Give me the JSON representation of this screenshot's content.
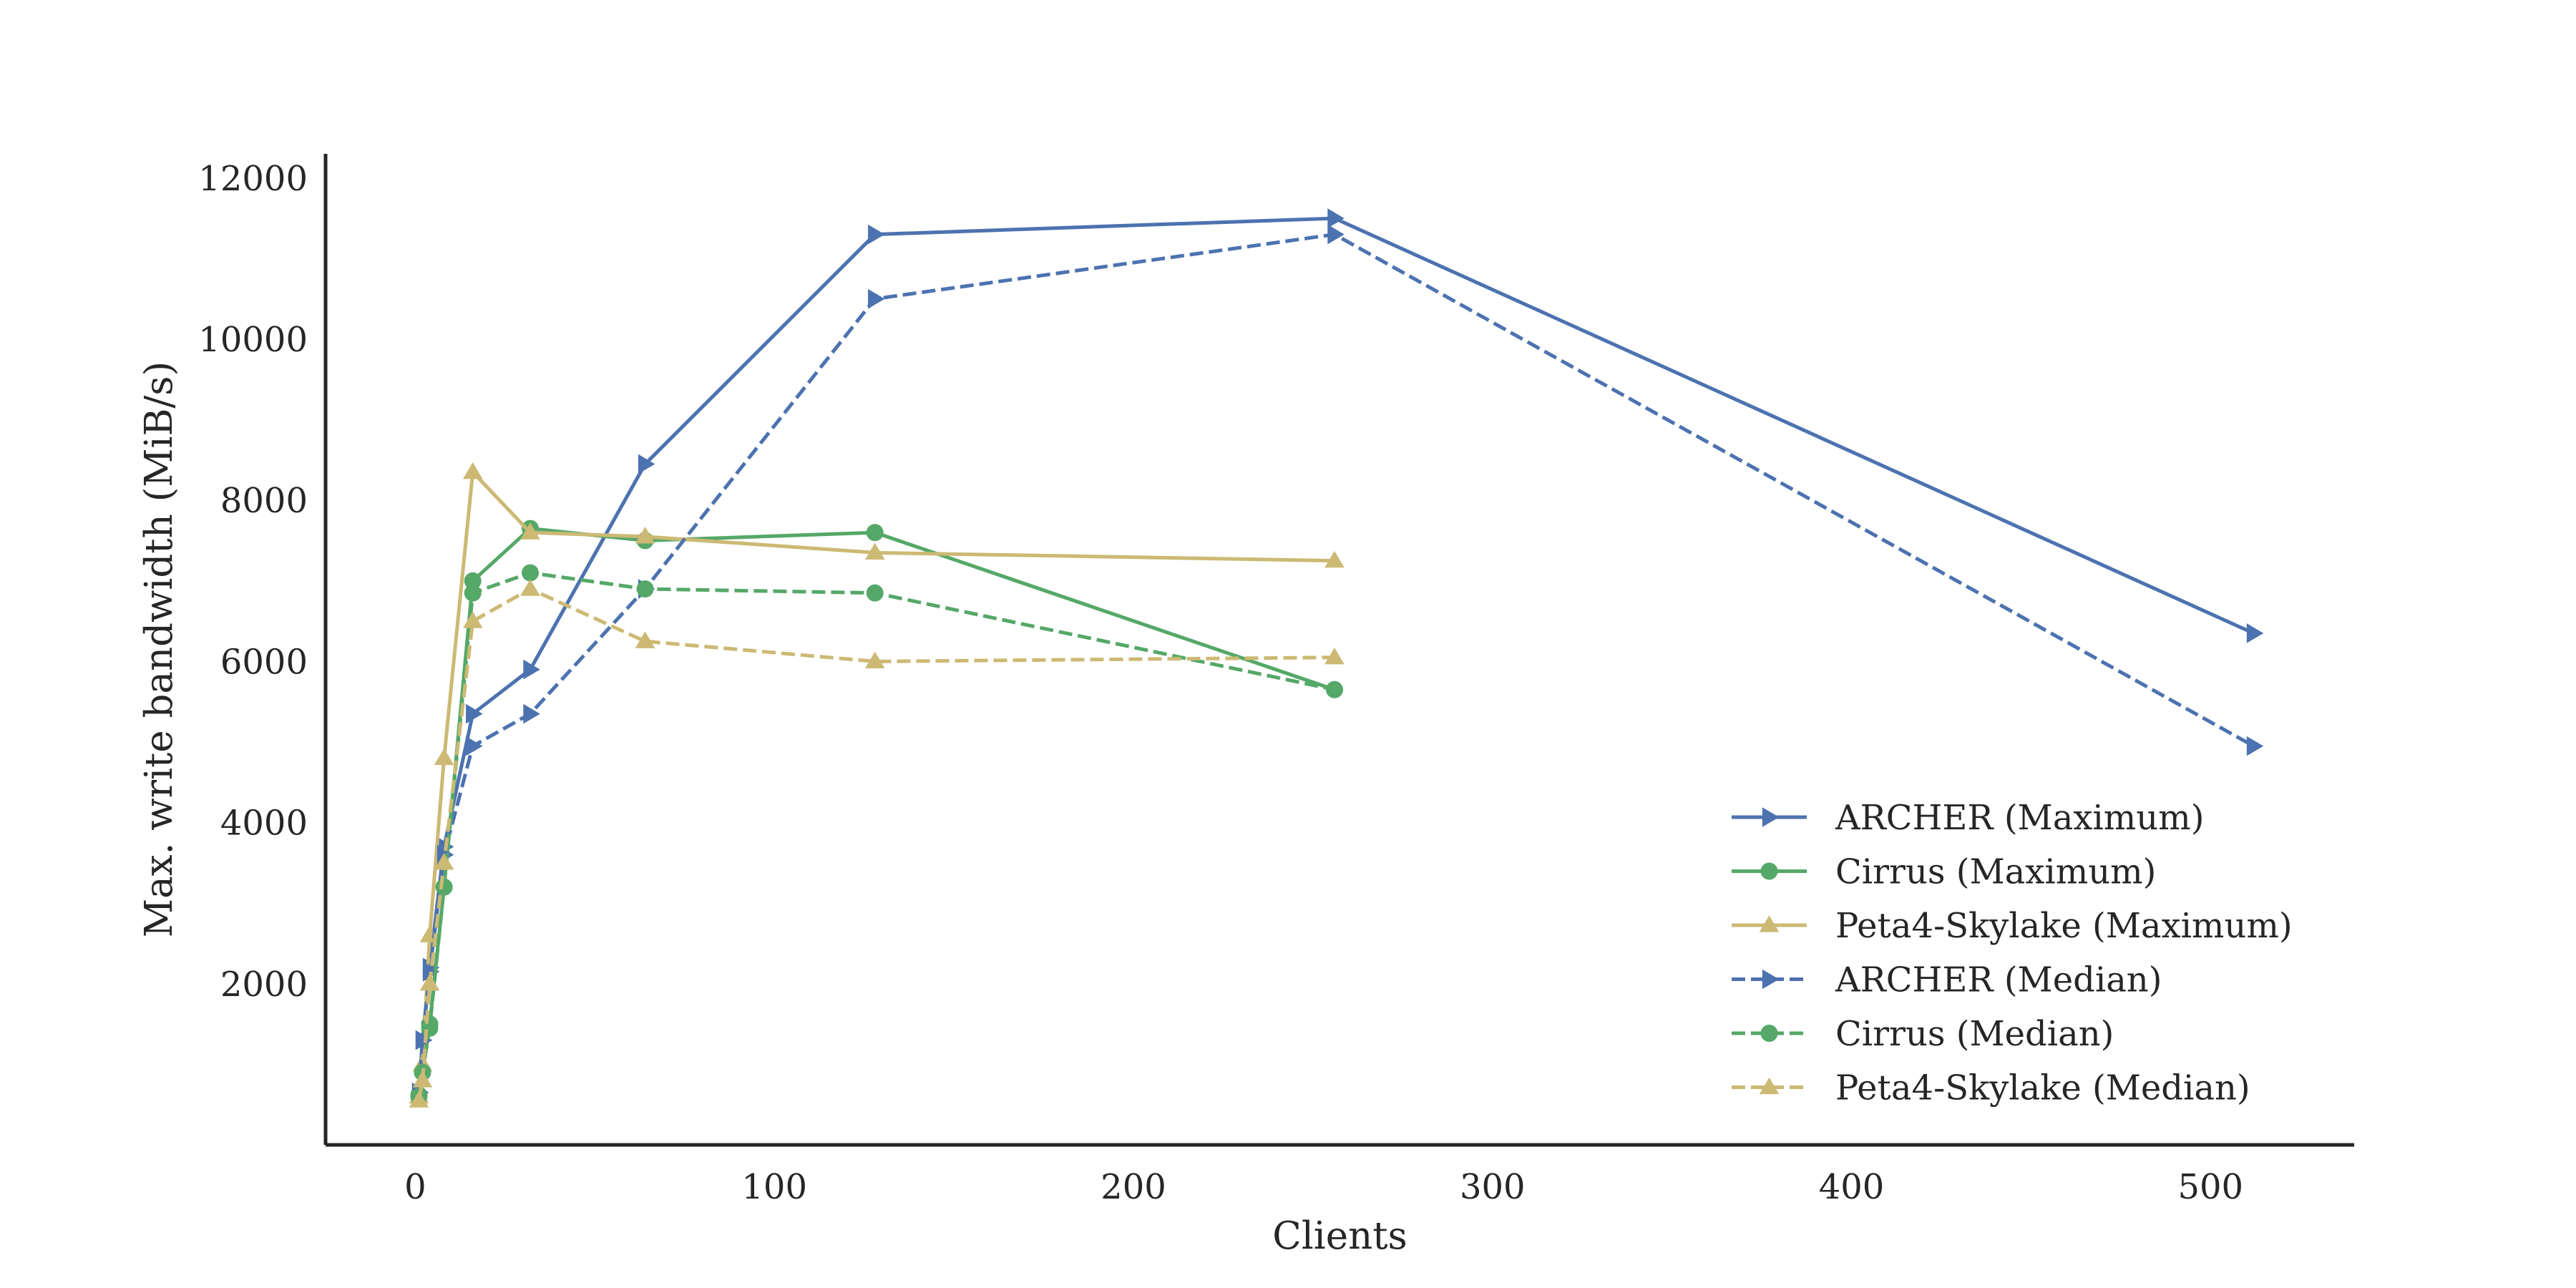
{
  "chart_data": {
    "type": "line",
    "title": "",
    "xlabel": "Clients",
    "ylabel": "Max. write bandwidth (MiB/s)",
    "xlim": [
      -25,
      540
    ],
    "ylim": [
      0,
      12300
    ],
    "xticks": [
      0,
      100,
      200,
      300,
      400,
      500
    ],
    "yticks": [
      2000,
      4000,
      6000,
      8000,
      10000,
      12000
    ],
    "grid": false,
    "legend_position": "lower-right",
    "series": [
      {
        "name": "ARCHER (Maximum)",
        "color": "#4c72b0",
        "linestyle": "solid",
        "marker": "triangle-right",
        "x": [
          1,
          2,
          4,
          8,
          16,
          32,
          64,
          128,
          256,
          512
        ],
        "y": [
          650,
          1300,
          2200,
          3700,
          5350,
          5900,
          8450,
          11300,
          11500,
          6350
        ]
      },
      {
        "name": "Cirrus (Maximum)",
        "color": "#55a868",
        "linestyle": "solid",
        "marker": "circle",
        "x": [
          1,
          2,
          4,
          8,
          16,
          32,
          64,
          128,
          256
        ],
        "y": [
          620,
          900,
          1500,
          3200,
          7000,
          7650,
          7500,
          7600,
          5650
        ]
      },
      {
        "name": "Peta4-Skylake (Maximum)",
        "color": "#ccb974",
        "linestyle": "solid",
        "marker": "triangle-up",
        "x": [
          1,
          2,
          4,
          8,
          16,
          32,
          64,
          128,
          256
        ],
        "y": [
          600,
          1000,
          2600,
          4800,
          8350,
          7600,
          7550,
          7350,
          7250
        ]
      },
      {
        "name": "ARCHER (Median)",
        "color": "#4c72b0",
        "linestyle": "dashed",
        "marker": "triangle-right",
        "x": [
          1,
          2,
          4,
          8,
          16,
          32,
          64,
          128,
          256,
          512
        ],
        "y": [
          650,
          1300,
          2150,
          3600,
          4950,
          5350,
          6900,
          10500,
          11300,
          4950
        ]
      },
      {
        "name": "Cirrus (Median)",
        "color": "#55a868",
        "linestyle": "dashed",
        "marker": "circle",
        "x": [
          1,
          2,
          4,
          8,
          16,
          32,
          64,
          128,
          256
        ],
        "y": [
          600,
          900,
          1450,
          3200,
          6850,
          7100,
          6900,
          6850,
          5650
        ]
      },
      {
        "name": "Peta4-Skylake (Median)",
        "color": "#ccb974",
        "linestyle": "dashed",
        "marker": "triangle-up",
        "x": [
          1,
          2,
          4,
          8,
          16,
          32,
          64,
          128,
          256
        ],
        "y": [
          550,
          800,
          2000,
          3500,
          6500,
          6900,
          6250,
          6000,
          6050
        ]
      }
    ]
  }
}
